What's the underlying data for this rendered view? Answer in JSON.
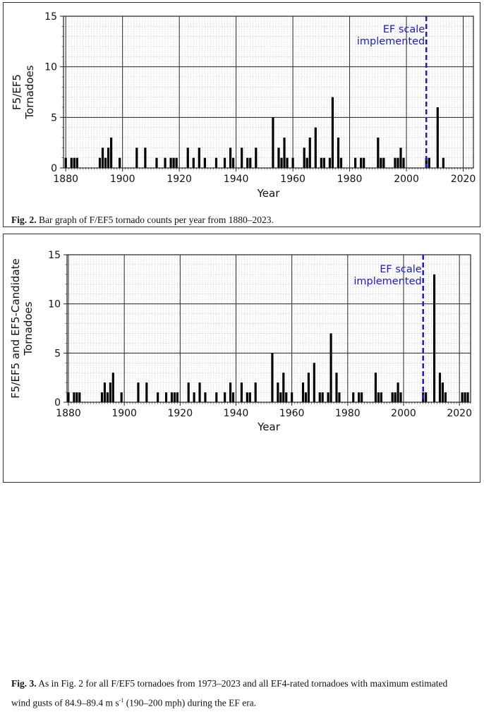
{
  "figures": [
    {
      "caption_label": "Fig. 2.",
      "caption_text": " Bar graph of F/EF5 tornado counts per year from 1880–2023."
    },
    {
      "caption_label": "Fig. 3.",
      "caption_text": " As in Fig. 2 for all F/EF5 tornadoes from 1973–2023 and all EF4-rated tornadoes with maximum estimated wind gusts of 84.9–89.4 m s",
      "caption_sup": "-1",
      "caption_tail": " (190–200 mph) during the EF era."
    }
  ],
  "chart_data": [
    {
      "type": "bar",
      "title": "",
      "xlabel": "Year",
      "ylabel": [
        "F5/EF5",
        "Tornadoes"
      ],
      "xlim": [
        1879.2,
        2023.6
      ],
      "ylim": [
        0,
        15
      ],
      "xticks": [
        1880,
        1900,
        1920,
        1940,
        1960,
        1980,
        2000,
        2020
      ],
      "yticks": [
        0,
        5,
        10,
        15
      ],
      "grid": true,
      "annotation": {
        "text": [
          "EF scale",
          "implemented"
        ],
        "x": 2007,
        "color": "#1a1acc"
      },
      "x": [
        1880,
        1882,
        1883,
        1884,
        1892,
        1893,
        1894,
        1895,
        1896,
        1899,
        1905,
        1908,
        1912,
        1915,
        1917,
        1918,
        1919,
        1923,
        1925,
        1927,
        1929,
        1933,
        1936,
        1938,
        1939,
        1942,
        1944,
        1945,
        1947,
        1953,
        1955,
        1956,
        1957,
        1958,
        1960,
        1964,
        1965,
        1966,
        1968,
        1970,
        1971,
        1973,
        1974,
        1976,
        1977,
        1982,
        1984,
        1985,
        1990,
        1991,
        1992,
        1996,
        1997,
        1998,
        1999,
        2007,
        2008,
        2011,
        2013
      ],
      "values": [
        1,
        1,
        1,
        1,
        1,
        2,
        1,
        2,
        3,
        1,
        2,
        2,
        1,
        1,
        1,
        1,
        1,
        2,
        1,
        2,
        1,
        1,
        1,
        2,
        1,
        2,
        1,
        1,
        2,
        5,
        2,
        1,
        3,
        1,
        1,
        2,
        1,
        3,
        4,
        1,
        1,
        1,
        7,
        3,
        1,
        1,
        1,
        1,
        3,
        1,
        1,
        1,
        1,
        2,
        1,
        1,
        1,
        6,
        1
      ]
    },
    {
      "type": "bar",
      "title": "",
      "xlabel": "Year",
      "ylabel": [
        "F5/EF5 and EF5-Candidate",
        "Tornadoes"
      ],
      "xlim": [
        1879.5,
        2024
      ],
      "ylim": [
        0,
        15
      ],
      "xticks": [
        1880,
        1900,
        1920,
        1940,
        1960,
        1980,
        2000,
        2020
      ],
      "yticks": [
        0,
        5,
        10,
        15
      ],
      "grid": true,
      "annotation": {
        "text": [
          "EF scale",
          "implemented"
        ],
        "x": 2007,
        "color": "#1a1acc"
      },
      "x": [
        1880,
        1882,
        1883,
        1884,
        1892,
        1893,
        1894,
        1895,
        1896,
        1899,
        1905,
        1908,
        1912,
        1915,
        1917,
        1918,
        1919,
        1923,
        1925,
        1927,
        1929,
        1933,
        1936,
        1938,
        1939,
        1942,
        1944,
        1945,
        1947,
        1953,
        1955,
        1956,
        1957,
        1958,
        1960,
        1964,
        1965,
        1966,
        1968,
        1970,
        1971,
        1973,
        1974,
        1976,
        1977,
        1982,
        1984,
        1985,
        1990,
        1991,
        1992,
        1996,
        1997,
        1998,
        1999,
        2007,
        2008,
        2011,
        2013,
        2014,
        2015,
        2021,
        2022,
        2023
      ],
      "values": [
        1,
        1,
        1,
        1,
        1,
        2,
        1,
        2,
        3,
        1,
        2,
        2,
        1,
        1,
        1,
        1,
        1,
        2,
        1,
        2,
        1,
        1,
        1,
        2,
        1,
        2,
        1,
        1,
        2,
        5,
        2,
        1,
        3,
        1,
        1,
        2,
        1,
        3,
        4,
        1,
        1,
        1,
        7,
        3,
        1,
        1,
        1,
        1,
        3,
        1,
        1,
        1,
        1,
        2,
        1,
        1,
        1,
        13,
        3,
        2,
        1,
        1,
        1,
        1
      ]
    }
  ]
}
